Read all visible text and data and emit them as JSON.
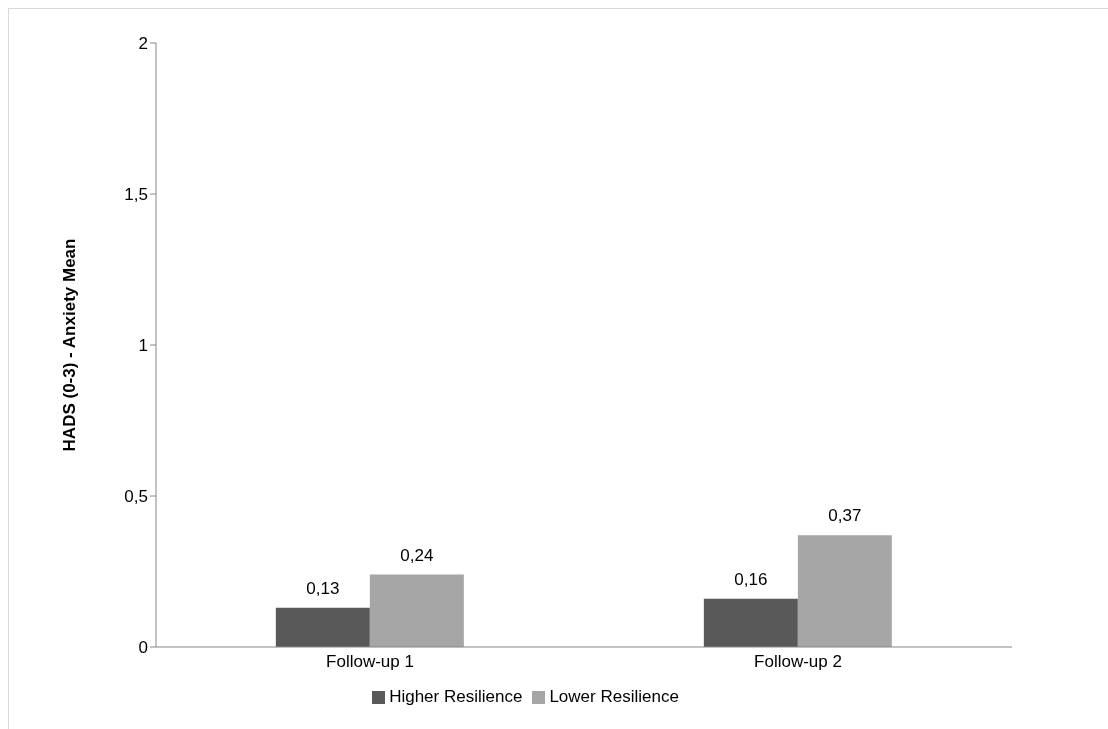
{
  "chart_data": {
    "type": "bar",
    "ylabel": "HADS (0-3) - Anxiety Mean",
    "categories": [
      "Follow-up 1",
      "Follow-up 2"
    ],
    "series": [
      {
        "name": "Higher Resilience",
        "color": "#595959",
        "values": [
          0.13,
          0.16
        ],
        "value_labels": [
          "0,13",
          "0,16"
        ]
      },
      {
        "name": "Lower Resilience",
        "color": "#a6a6a6",
        "values": [
          0.24,
          0.37
        ],
        "value_labels": [
          "0,24",
          "0,37"
        ]
      }
    ],
    "ylim": [
      0,
      2
    ],
    "yticks": [
      0,
      {
        "value": 0.5,
        "label": "0,5"
      },
      1,
      {
        "value": 1.5,
        "label": "1,5"
      },
      2
    ],
    "grid": false,
    "legend": "bottom"
  }
}
